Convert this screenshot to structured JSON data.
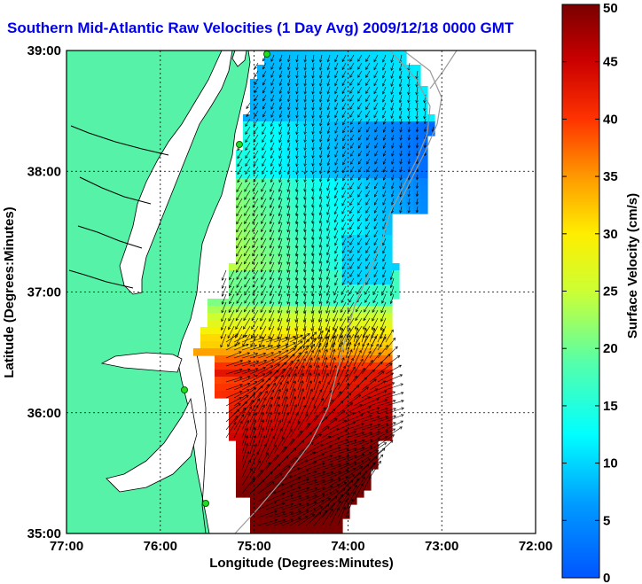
{
  "title": "Southern Mid-Atlantic Raw Velocities (1 Day Avg) 2009/12/18 0000 GMT",
  "x_axis": {
    "label": "Longitude (Degrees:Minutes)",
    "ticks": [
      "77:00",
      "76:00",
      "75:00",
      "74:00",
      "73:00",
      "72:00"
    ],
    "values": [
      -77,
      -76,
      -75,
      -74,
      -73,
      -72
    ]
  },
  "y_axis": {
    "label": "Latitude (Degrees:Minutes)",
    "ticks": [
      "39:00",
      "38:00",
      "37:00",
      "36:00",
      "35:00"
    ],
    "values": [
      39,
      38,
      37,
      36,
      35
    ]
  },
  "colorbar": {
    "label": "Surface Velocity (cm/s)",
    "ticks": [
      "50",
      "45",
      "40",
      "35",
      "30",
      "25",
      "20",
      "15",
      "10",
      "5",
      "0"
    ],
    "values": [
      50,
      45,
      40,
      35,
      30,
      25,
      20,
      15,
      10,
      5,
      0
    ],
    "range": [
      0,
      50
    ],
    "colormap": "jet"
  },
  "colors": {
    "land": "#55f2a8",
    "water": "#ffffff",
    "title": "#0000ee",
    "station": "#22dd22",
    "vectors": "#000000",
    "grid": "#000000"
  }
}
